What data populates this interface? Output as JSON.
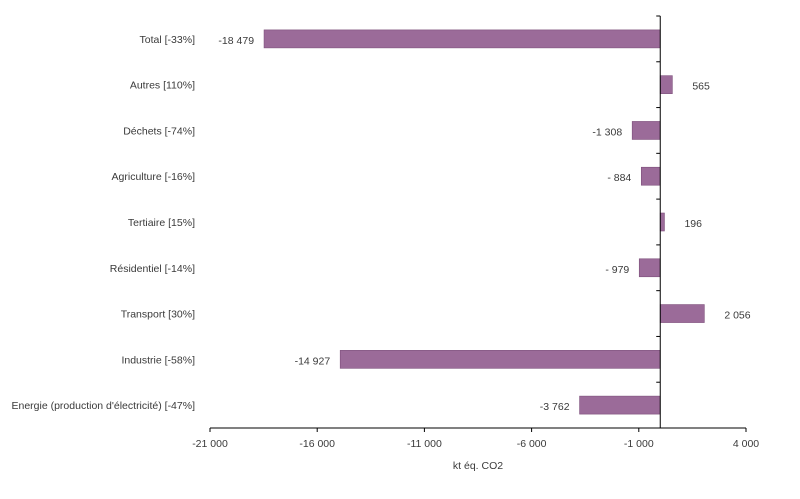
{
  "chart_data": {
    "type": "bar",
    "orientation": "horizontal",
    "categories": [
      "Total [-33%]",
      "Autres [110%]",
      "Déchets [-74%]",
      "Agriculture [-16%]",
      "Tertiaire  [15%]",
      "Résidentiel  [-14%]",
      "Transport [30%]",
      "Industrie [-58%]",
      "Energie (production d'électricité) [-47%]"
    ],
    "values": [
      -18479,
      565,
      -1308,
      -884,
      196,
      -979,
      2056,
      -14927,
      -3762
    ],
    "value_labels": [
      "-18 479",
      "565",
      "-1 308",
      "- 884",
      "196",
      "- 979",
      "2 056",
      "-14 927",
      "-3 762"
    ],
    "xlabel": "kt éq. CO2",
    "xlim": [
      -21000,
      4000
    ],
    "xticks": [
      -21000,
      -16000,
      -11000,
      -6000,
      -1000,
      4000
    ],
    "xtick_labels": [
      "-21 000",
      "-16 000",
      "-11 000",
      "-6 000",
      "-1 000",
      "4 000"
    ],
    "title": "",
    "grid": false,
    "bar_color": "#9b6b99",
    "bar_edge_color": "#7d4f7b"
  }
}
